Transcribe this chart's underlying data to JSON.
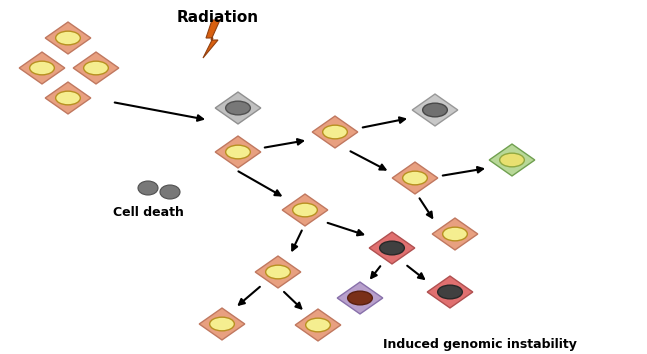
{
  "title": "Induced genomic instability",
  "radiation_label": "Radiation",
  "cell_death_label": "Cell death",
  "bg_color": "#ffffff",
  "cells": {
    "normal": {
      "diamond": "#E8A080",
      "nucleus": "#F5EE90",
      "n_border": "#B89020",
      "d_border": "#C07860"
    },
    "irradiated": {
      "diamond": "#C0C0C0",
      "nucleus": "#787878",
      "n_border": "#505050",
      "d_border": "#909090"
    },
    "mutant_red": {
      "diamond": "#E07070",
      "nucleus": "#404040",
      "n_border": "#282828",
      "d_border": "#B05050"
    },
    "mutant_pur": {
      "diamond": "#B8A0CC",
      "nucleus": "#7A3018",
      "n_border": "#5A2010",
      "d_border": "#8870AA"
    },
    "green": {
      "diamond": "#B8D898",
      "nucleus": "#E8E070",
      "n_border": "#90A840",
      "d_border": "#70A050"
    },
    "dead_gray": {
      "diamond": "#C8C8C8",
      "nucleus": "#707070",
      "n_border": "#484848",
      "d_border": "#989898"
    }
  },
  "lightning_color": "#D86010",
  "lightning_edge": "#904010",
  "arrow_lw": 1.5,
  "arrow_ms": 10,
  "cell_size": 38
}
